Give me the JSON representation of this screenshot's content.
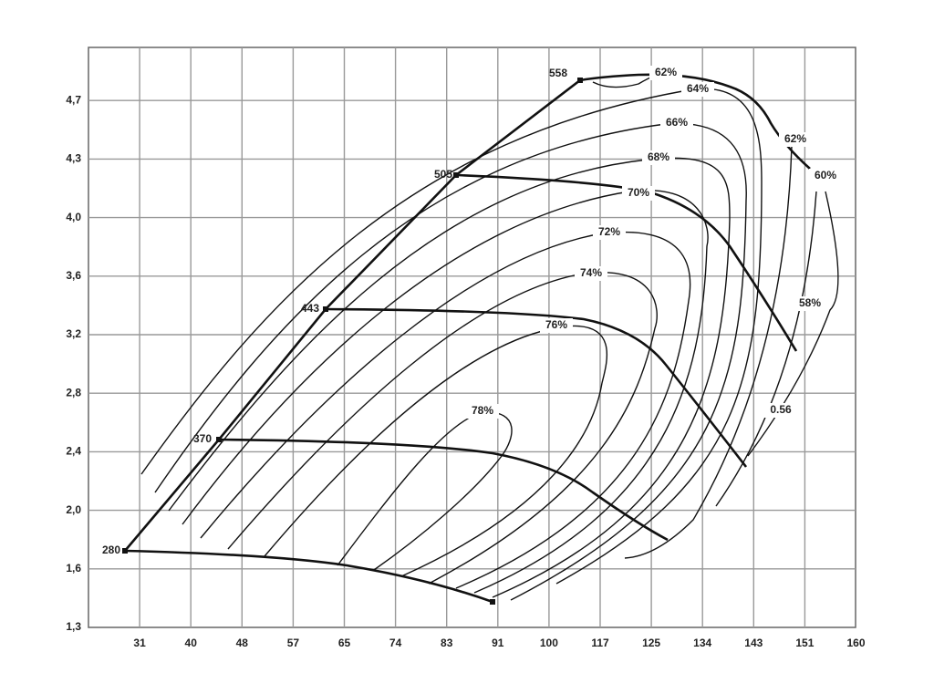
{
  "chart_data": {
    "type": "compressor-map",
    "xticks": [
      31,
      40,
      48,
      57,
      65,
      74,
      83,
      91,
      100,
      117,
      125,
      134,
      143,
      151,
      160
    ],
    "yticks": [
      {
        "value": 1.3,
        "label": "1,3"
      },
      {
        "value": 1.6,
        "label": "1,6"
      },
      {
        "value": 2.0,
        "label": "2,0"
      },
      {
        "value": 2.4,
        "label": "2,4"
      },
      {
        "value": 2.8,
        "label": "2,8"
      },
      {
        "value": 3.2,
        "label": "3,2"
      },
      {
        "value": 3.6,
        "label": "3,6"
      },
      {
        "value": 4.0,
        "label": "4,0"
      },
      {
        "value": 4.3,
        "label": "4,3"
      },
      {
        "value": 4.7,
        "label": "4,7"
      }
    ],
    "grid": true,
    "speed_labels": [
      "280",
      "370",
      "443",
      "505",
      "558"
    ],
    "efficiency_labels": [
      "78%",
      "76%",
      "74%",
      "72%",
      "70%",
      "68%",
      "66%",
      "64%",
      "62%",
      "62%",
      "60%",
      "58%",
      "0.56"
    ]
  }
}
